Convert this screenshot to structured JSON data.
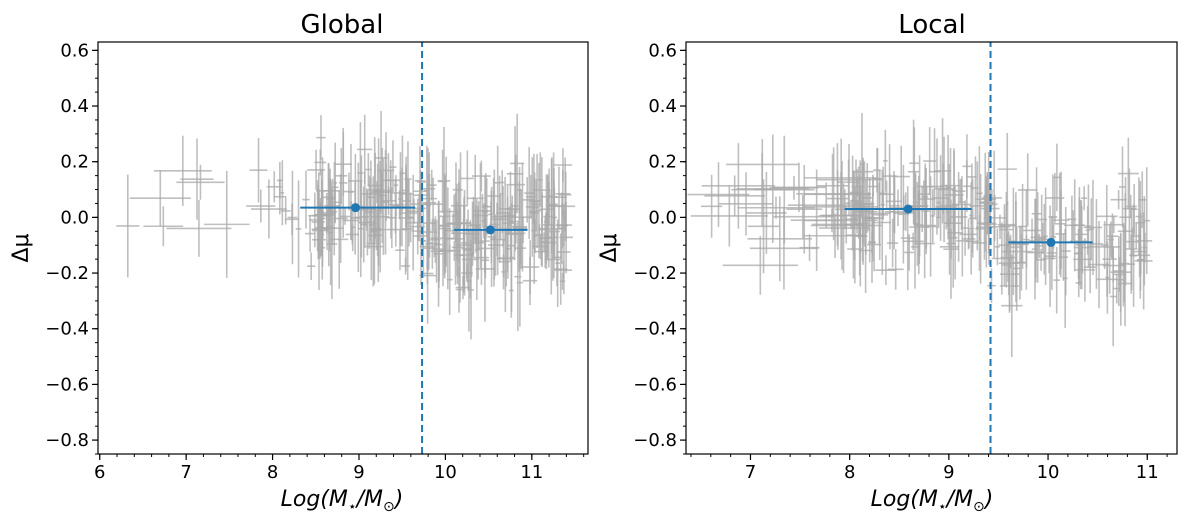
{
  "chart_data": [
    {
      "type": "scatter",
      "title": "Global",
      "xlabel_parts": [
        "Log(M",
        "⋆",
        "/M",
        "⊙",
        ")"
      ],
      "ylabel": "Δμ",
      "xlim": [
        5.98,
        11.65
      ],
      "ylim": [
        -0.85,
        0.63
      ],
      "xticks": [
        6,
        7,
        8,
        9,
        10,
        11
      ],
      "xtick_labels": [
        "6",
        "7",
        "8",
        "9",
        "10",
        "11"
      ],
      "yticks": [
        0.6,
        0.4,
        0.2,
        0.0,
        -0.2,
        -0.4,
        -0.6,
        -0.8
      ],
      "ytick_labels": [
        "0.6",
        "0.4",
        "0.2",
        "0.0",
        "−0.2",
        "−0.4",
        "−0.6",
        "−0.8"
      ],
      "split_line": {
        "x": 9.73,
        "color": "#1f77b4",
        "style": "dashed"
      },
      "binned_means": [
        {
          "x": 8.96,
          "y": 0.035,
          "xerr_low": 8.32,
          "xerr_high": 9.65
        },
        {
          "x": 10.52,
          "y": -0.045,
          "xerr_low": 10.1,
          "xerr_high": 10.95
        }
      ],
      "marker_color": "#1f77b4",
      "errorbar_color": "#aaaaaa",
      "grid": false,
      "sample_count": 330
    },
    {
      "type": "scatter",
      "title": "Local",
      "xlabel_parts": [
        "Log(M",
        "⋆",
        "/M",
        "⊙",
        ")"
      ],
      "ylabel": "Δμ",
      "xlim": [
        6.35,
        11.3
      ],
      "ylim": [
        -0.85,
        0.63
      ],
      "xticks": [
        7,
        8,
        9,
        10,
        11
      ],
      "xtick_labels": [
        "7",
        "8",
        "9",
        "10",
        "11"
      ],
      "yticks": [
        0.6,
        0.4,
        0.2,
        0.0,
        -0.2,
        -0.4,
        -0.6,
        -0.8
      ],
      "ytick_labels": [
        "0.6",
        "0.4",
        "0.2",
        "0.0",
        "−0.2",
        "−0.4",
        "−0.6",
        "−0.8"
      ],
      "split_line": {
        "x": 9.42,
        "color": "#1f77b4",
        "style": "dashed"
      },
      "binned_means": [
        {
          "x": 8.59,
          "y": 0.03,
          "xerr_low": 7.95,
          "xerr_high": 9.23
        },
        {
          "x": 10.03,
          "y": -0.09,
          "xerr_low": 9.6,
          "xerr_high": 10.45
        }
      ],
      "marker_color": "#1f77b4",
      "errorbar_color": "#aaaaaa",
      "grid": false,
      "sample_count": 290
    }
  ]
}
